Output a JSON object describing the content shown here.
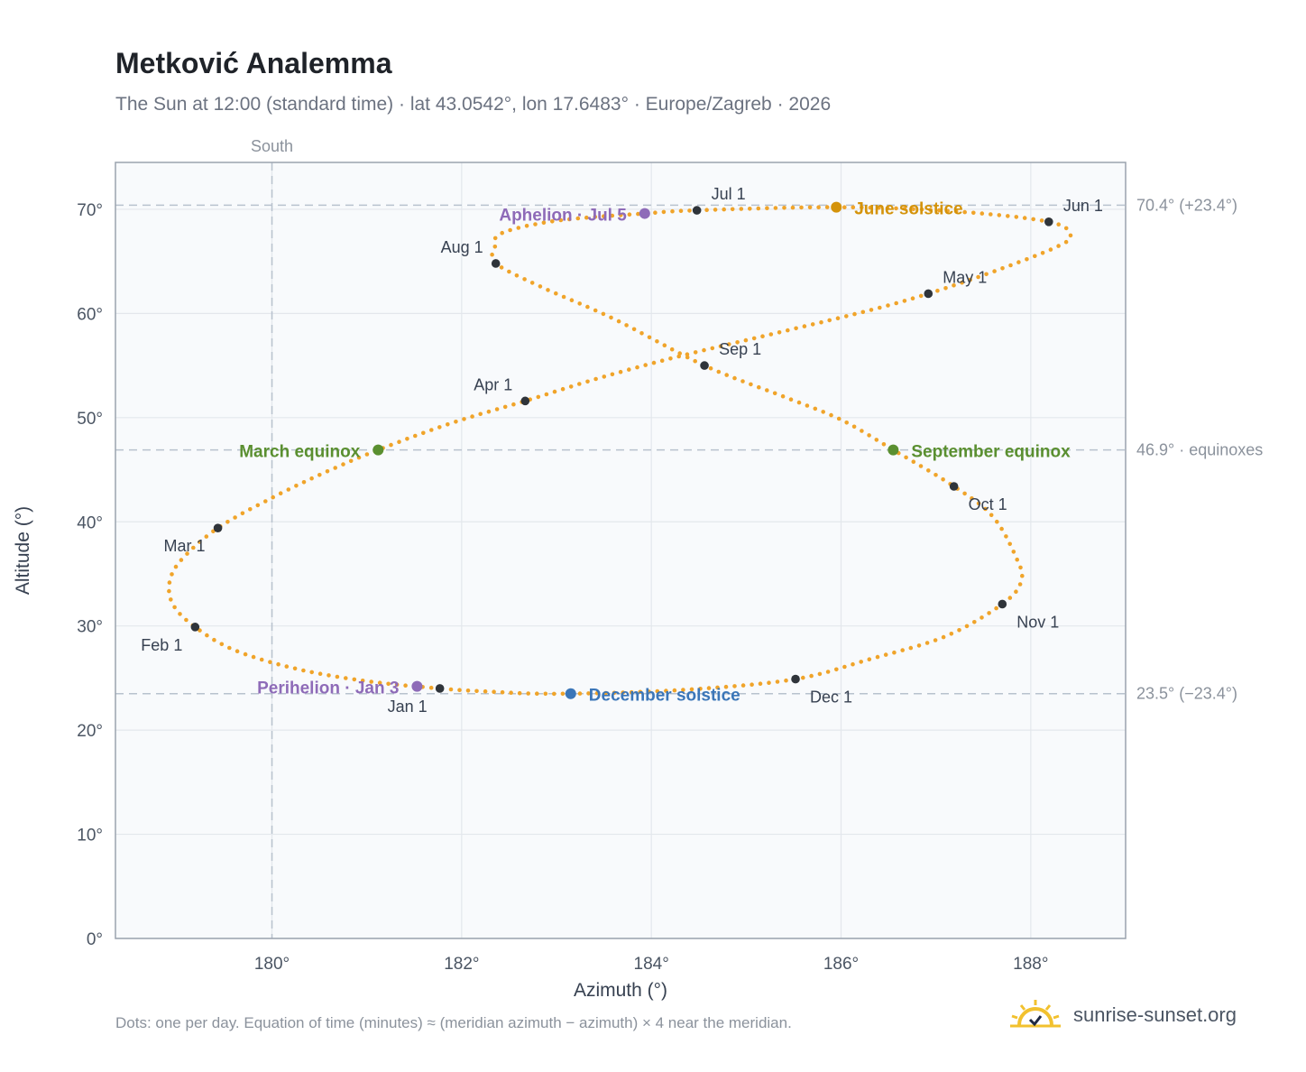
{
  "header": {
    "title": "Metković Analemma",
    "subtitle": "The Sun at 12:00 (standard time) · lat 43.0542°, lon 17.6483° · Europe/Zagreb · 2026"
  },
  "footer": {
    "note": "Dots: one per day. Equation of time (minutes) ≈ (meridian azimuth − azimuth) × 4 near the meridian.",
    "brand": "sunrise-sunset.org"
  },
  "colors": {
    "curve": "#f0a42a",
    "month_marker": "#2f343a",
    "solstice_june": "#d4930b",
    "solstice_december": "#3b76b8",
    "equinox": "#5a8f30",
    "apsis": "#8e6bb8",
    "grid": "#e3e7ec",
    "plot_bg": "#f8fafc",
    "reference_line": "#b8c2ce"
  },
  "chart_data": {
    "type": "scatter",
    "xlabel": "Azimuth (°)",
    "ylabel": "Altitude (°)",
    "xlim": [
      178.35,
      189.0
    ],
    "ylim": [
      0,
      74.5
    ],
    "x_ticks": [
      180,
      182,
      184,
      186,
      188
    ],
    "x_tick_labels": [
      "180°",
      "182°",
      "184°",
      "186°",
      "188°"
    ],
    "y_ticks": [
      0,
      10,
      20,
      30,
      40,
      50,
      60,
      70
    ],
    "y_tick_labels": [
      "0°",
      "10°",
      "20°",
      "30°",
      "40°",
      "50°",
      "60°",
      "70°"
    ],
    "grid": true,
    "meridian": {
      "azimuth": 180,
      "label": "South"
    },
    "reference_lines": [
      {
        "altitude": 70.4,
        "label": "70.4° (+23.4°)"
      },
      {
        "altitude": 46.9,
        "label": "46.9° · equinoxes"
      },
      {
        "altitude": 23.5,
        "label": "23.5° (−23.4°)"
      }
    ],
    "daily_path": [
      {
        "az": 181.77,
        "alt": 24.0
      },
      {
        "az": 181.0,
        "alt": 24.7
      },
      {
        "az": 180.25,
        "alt": 25.9
      },
      {
        "az": 179.6,
        "alt": 27.7
      },
      {
        "az": 179.19,
        "alt": 29.9
      },
      {
        "az": 178.96,
        "alt": 32.0
      },
      {
        "az": 178.92,
        "alt": 34.2
      },
      {
        "az": 179.05,
        "alt": 36.4
      },
      {
        "az": 179.43,
        "alt": 39.4
      },
      {
        "az": 180.0,
        "alt": 42.3
      },
      {
        "az": 180.55,
        "alt": 44.7
      },
      {
        "az": 181.12,
        "alt": 46.9
      },
      {
        "az": 181.9,
        "alt": 49.5
      },
      {
        "az": 182.67,
        "alt": 51.6
      },
      {
        "az": 183.45,
        "alt": 53.8
      },
      {
        "az": 184.3,
        "alt": 55.9
      },
      {
        "az": 185.4,
        "alt": 58.3
      },
      {
        "az": 186.3,
        "alt": 60.3
      },
      {
        "az": 186.92,
        "alt": 61.9
      },
      {
        "az": 187.6,
        "alt": 64.0
      },
      {
        "az": 188.25,
        "alt": 66.3
      },
      {
        "az": 188.42,
        "alt": 67.5
      },
      {
        "az": 188.19,
        "alt": 68.8
      },
      {
        "az": 187.2,
        "alt": 69.8
      },
      {
        "az": 185.95,
        "alt": 70.2
      },
      {
        "az": 184.48,
        "alt": 69.9
      },
      {
        "az": 183.93,
        "alt": 69.6
      },
      {
        "az": 183.0,
        "alt": 68.9
      },
      {
        "az": 182.42,
        "alt": 67.7
      },
      {
        "az": 182.35,
        "alt": 66.3
      },
      {
        "az": 182.36,
        "alt": 64.8
      },
      {
        "az": 182.85,
        "alt": 62.5
      },
      {
        "az": 183.6,
        "alt": 59.5
      },
      {
        "az": 184.56,
        "alt": 55.0
      },
      {
        "az": 185.4,
        "alt": 52.0
      },
      {
        "az": 186.0,
        "alt": 49.8
      },
      {
        "az": 186.55,
        "alt": 46.9
      },
      {
        "az": 187.19,
        "alt": 43.4
      },
      {
        "az": 187.6,
        "alt": 40.5
      },
      {
        "az": 187.85,
        "alt": 36.5
      },
      {
        "az": 187.9,
        "alt": 34.3
      },
      {
        "az": 187.7,
        "alt": 32.1
      },
      {
        "az": 187.1,
        "alt": 29.0
      },
      {
        "az": 186.3,
        "alt": 26.8
      },
      {
        "az": 185.52,
        "alt": 24.9
      },
      {
        "az": 184.4,
        "alt": 23.9
      },
      {
        "az": 183.15,
        "alt": 23.5
      },
      {
        "az": 182.3,
        "alt": 23.7
      },
      {
        "az": 181.77,
        "alt": 24.0
      }
    ],
    "month_markers": [
      {
        "label": "Jan 1",
        "az": 181.77,
        "alt": 24.0,
        "pos": "below-left"
      },
      {
        "label": "Feb 1",
        "az": 179.19,
        "alt": 29.9,
        "pos": "below-left"
      },
      {
        "label": "Mar 1",
        "az": 179.43,
        "alt": 39.4,
        "pos": "below-left"
      },
      {
        "label": "Apr 1",
        "az": 182.67,
        "alt": 51.6,
        "pos": "above-left"
      },
      {
        "label": "May 1",
        "az": 186.92,
        "alt": 61.9,
        "pos": "above-right"
      },
      {
        "label": "Jun 1",
        "az": 188.19,
        "alt": 68.8,
        "pos": "above-right"
      },
      {
        "label": "Jul 1",
        "az": 184.48,
        "alt": 69.9,
        "pos": "above-right"
      },
      {
        "label": "Aug 1",
        "az": 182.36,
        "alt": 64.8,
        "pos": "above-left"
      },
      {
        "label": "Sep 1",
        "az": 184.56,
        "alt": 55.0,
        "pos": "above-right"
      },
      {
        "label": "Oct 1",
        "az": 187.19,
        "alt": 43.4,
        "pos": "below-right"
      },
      {
        "label": "Nov 1",
        "az": 187.7,
        "alt": 32.1,
        "pos": "below-right"
      },
      {
        "label": "Dec 1",
        "az": 185.52,
        "alt": 24.9,
        "pos": "below-right"
      }
    ],
    "events": [
      {
        "label": "June solstice",
        "az": 185.95,
        "alt": 70.2,
        "color": "#d4930b",
        "side": "right"
      },
      {
        "label": "December solstice",
        "az": 183.15,
        "alt": 23.5,
        "color": "#3b76b8",
        "side": "right"
      },
      {
        "label": "March equinox",
        "az": 181.12,
        "alt": 46.9,
        "color": "#5a8f30",
        "side": "left"
      },
      {
        "label": "September equinox",
        "az": 186.55,
        "alt": 46.9,
        "color": "#5a8f30",
        "side": "right"
      },
      {
        "label": "Aphelion · Jul 5",
        "az": 183.93,
        "alt": 69.6,
        "color": "#8e6bb8",
        "side": "left"
      },
      {
        "label": "Perihelion · Jan 3",
        "az": 181.53,
        "alt": 24.2,
        "color": "#8e6bb8",
        "side": "left"
      }
    ]
  }
}
